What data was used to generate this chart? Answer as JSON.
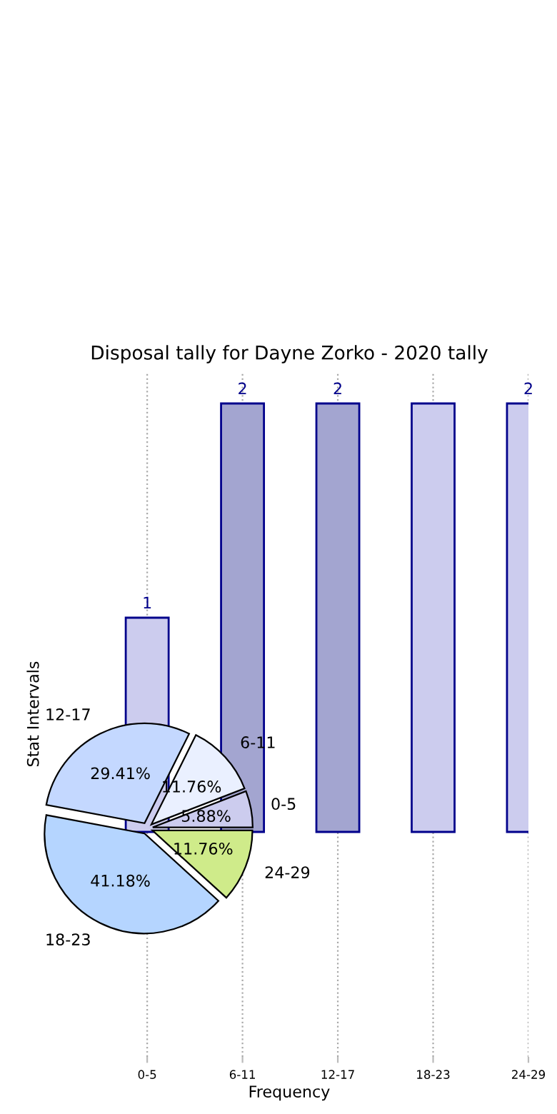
{
  "chart_data": [
    {
      "type": "bar",
      "title": "Disposal tally for Dayne Zorko - 2020 tally",
      "xlabel": "Frequency",
      "ylabel": "Stat Intervals",
      "categories": [
        "0-5",
        "6-11",
        "12-17",
        "18-23",
        "24-29"
      ],
      "values": [
        1,
        2,
        2,
        2,
        2
      ],
      "value_labels": [
        "1",
        "2",
        "2",
        null,
        "2"
      ],
      "colors": [
        "#ccccee",
        "#a3a5d0",
        "#a3a5d0",
        "#ccccee",
        "#ccccee"
      ],
      "ylim": [
        -1.05,
        2.15
      ],
      "grid": "x",
      "tick_labels": "x",
      "legend": false
    },
    {
      "type": "pie",
      "categories": [
        "0-5",
        "6-11",
        "12-17",
        "18-23",
        "24-29"
      ],
      "values": [
        5.88,
        11.76,
        29.41,
        41.18,
        11.76
      ],
      "value_labels": [
        "5.88%",
        "11.76%",
        "29.41%",
        "41.18%",
        "11.76%"
      ],
      "colors": [
        "#ccccee",
        "#eaf0ff",
        "#c4d8ff",
        "#b5d5ff",
        "#cfeb8a"
      ]
    }
  ]
}
